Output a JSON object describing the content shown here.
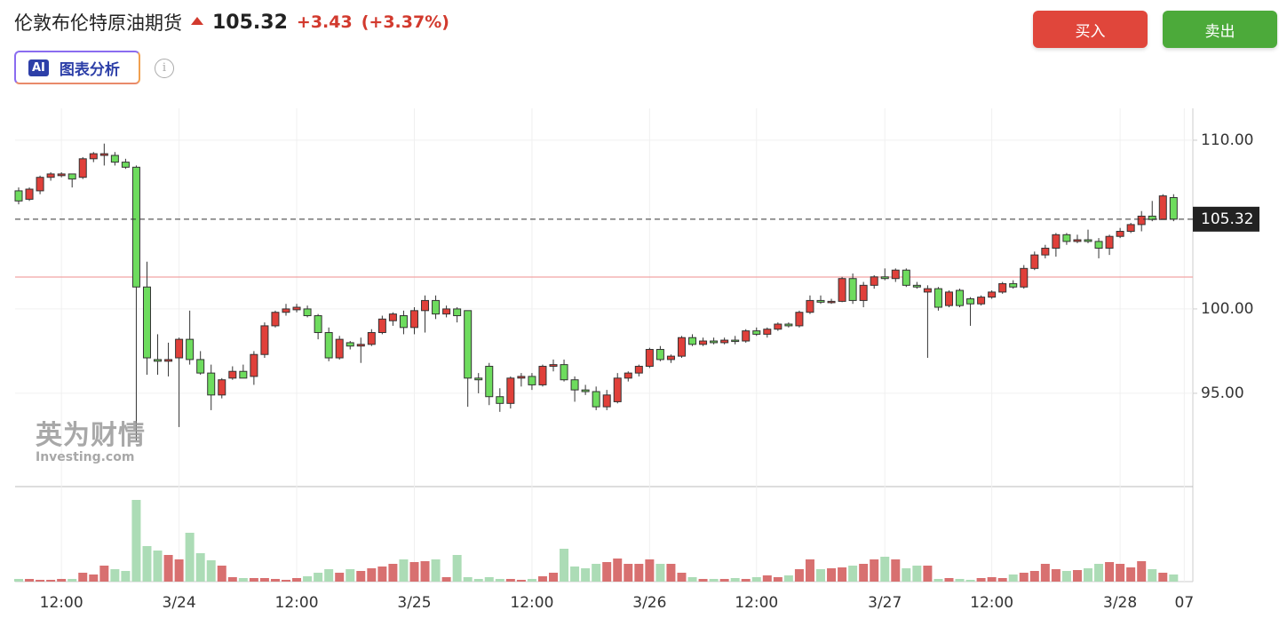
{
  "chart_data": {
    "type": "candlestick",
    "title": "伦敦布伦特原油期货",
    "price": 105.32,
    "change": "+3.43",
    "change_pct": "(+3.37%)",
    "buy": "买入",
    "sell": "卖出",
    "ai_badge": "AI",
    "analysis": "图表分析",
    "watermark": "英为财情",
    "watermark_sub": "Investing.com",
    "up_color": "#e0403a",
    "down_color": "#6edc5e",
    "volume_up_color": "#d87070",
    "volume_down_color": "#acdcb6",
    "prev_close": 101.89,
    "ylim": [
      89.47,
      111.89
    ],
    "yticks": [
      {
        "value": 95,
        "label": "95.00"
      },
      {
        "value": 100,
        "label": "100.00"
      },
      {
        "value": 110,
        "label": "110.00"
      }
    ],
    "grid": true,
    "categories": [
      null,
      null,
      null,
      null,
      "12:00",
      null,
      null,
      null,
      null,
      null,
      null,
      null,
      null,
      null,
      null,
      "3/24",
      null,
      null,
      null,
      null,
      null,
      null,
      null,
      null,
      null,
      null,
      "12:00",
      null,
      null,
      null,
      null,
      null,
      null,
      null,
      null,
      null,
      null,
      "3/25",
      null,
      null,
      null,
      null,
      null,
      null,
      null,
      null,
      null,
      null,
      "12:00",
      null,
      null,
      null,
      null,
      null,
      null,
      null,
      null,
      null,
      null,
      "3/26",
      null,
      null,
      null,
      null,
      null,
      null,
      null,
      null,
      null,
      "12:00",
      null,
      null,
      null,
      null,
      null,
      null,
      null,
      null,
      null,
      null,
      null,
      "3/27",
      null,
      null,
      null,
      null,
      null,
      null,
      null,
      null,
      null,
      "12:00",
      null,
      null,
      null,
      null,
      null,
      null,
      null,
      null,
      null,
      null,
      null,
      "3/28",
      null,
      null,
      null,
      null,
      null,
      "07"
    ],
    "open": [
      107.0,
      106.5,
      107.0,
      107.8,
      107.9,
      108.0,
      107.8,
      108.9,
      109.1,
      109.1,
      108.7,
      108.4,
      101.3,
      97.0,
      96.9,
      97.1,
      98.2,
      97.0,
      96.2,
      94.9,
      95.9,
      96.3,
      96.0,
      97.3,
      99.0,
      99.8,
      99.95,
      100.0,
      99.6,
      98.6,
      97.1,
      98.0,
      97.8,
      97.9,
      98.6,
      99.3,
      99.6,
      98.9,
      99.9,
      100.5,
      99.7,
      100.0,
      99.9,
      95.9,
      96.6,
      94.8,
      94.4,
      95.9,
      96.0,
      95.5,
      96.6,
      96.7,
      95.8,
      95.2,
      95.1,
      94.2,
      94.5,
      95.9,
      96.2,
      96.6,
      97.6,
      97.0,
      97.2,
      98.3,
      97.9,
      98.1,
      98.0,
      98.15,
      98.1,
      98.7,
      98.5,
      98.8,
      99.1,
      99.0,
      99.8,
      100.5,
      100.4,
      100.45,
      101.8,
      100.5,
      101.4,
      101.9,
      101.8,
      102.3,
      101.4,
      101.0,
      101.2,
      100.2,
      101.1,
      100.6,
      100.3,
      100.7,
      101.0,
      101.5,
      101.3,
      102.4,
      103.2,
      103.6,
      104.4,
      104.0,
      104.1,
      104.0,
      103.6,
      104.3,
      104.6,
      105.0,
      105.5,
      105.3,
      106.6,
      null
    ],
    "high": [
      107.2,
      107.2,
      107.9,
      108.1,
      108.1,
      108.0,
      109.0,
      109.3,
      109.8,
      109.3,
      108.9,
      108.5,
      102.8,
      98.5,
      98.0,
      98.3,
      99.9,
      97.5,
      96.7,
      95.9,
      96.6,
      96.7,
      97.5,
      99.2,
      99.9,
      100.3,
      100.3,
      100.2,
      99.7,
      98.9,
      98.4,
      98.1,
      98.3,
      98.8,
      99.6,
      99.8,
      99.9,
      100.1,
      100.8,
      100.8,
      100.2,
      100.1,
      99.9,
      96.2,
      96.8,
      95.3,
      96.0,
      96.2,
      96.2,
      96.7,
      97.0,
      97.0,
      96.0,
      95.5,
      95.4,
      95.2,
      96.2,
      96.3,
      96.7,
      97.7,
      97.8,
      97.3,
      98.4,
      98.5,
      98.3,
      98.3,
      98.3,
      98.4,
      98.8,
      98.9,
      98.9,
      99.2,
      99.2,
      99.9,
      100.8,
      100.8,
      100.6,
      101.9,
      102.1,
      101.6,
      102.0,
      102.4,
      102.4,
      102.4,
      101.6,
      101.4,
      101.3,
      101.1,
      101.2,
      100.7,
      100.8,
      101.1,
      101.6,
      101.7,
      102.6,
      103.4,
      103.8,
      104.5,
      104.5,
      104.4,
      104.7,
      104.2,
      104.4,
      104.8,
      105.1,
      105.8,
      106.4,
      106.8,
      106.8,
      null
    ],
    "low": [
      106.2,
      106.4,
      106.8,
      107.6,
      107.8,
      107.2,
      107.7,
      108.7,
      108.5,
      108.5,
      108.3,
      92.2,
      96.1,
      96.1,
      96.0,
      93.0,
      96.7,
      96.1,
      94.0,
      94.7,
      95.8,
      95.9,
      95.5,
      97.1,
      98.9,
      99.6,
      99.8,
      99.5,
      98.2,
      96.9,
      97.0,
      97.6,
      96.8,
      97.8,
      98.5,
      99.0,
      98.5,
      98.5,
      98.6,
      99.4,
      99.5,
      99.2,
      94.2,
      95.0,
      94.3,
      93.9,
      94.1,
      95.4,
      95.2,
      95.4,
      96.3,
      95.7,
      94.5,
      94.9,
      94.0,
      94.0,
      94.4,
      95.7,
      96.0,
      96.5,
      96.9,
      96.8,
      97.1,
      97.8,
      97.8,
      97.9,
      97.9,
      97.9,
      98.0,
      98.4,
      98.3,
      98.7,
      98.9,
      98.9,
      99.7,
      100.3,
      100.3,
      100.4,
      100.3,
      100.1,
      101.2,
      101.7,
      101.6,
      101.3,
      101.2,
      97.1,
      99.9,
      100.1,
      100.1,
      99.0,
      100.2,
      100.6,
      100.9,
      101.2,
      101.2,
      102.3,
      103.0,
      103.1,
      103.8,
      103.9,
      103.9,
      103.0,
      103.2,
      104.2,
      104.5,
      104.6,
      105.2,
      105.3,
      105.2,
      null
    ],
    "close": [
      106.4,
      107.1,
      107.8,
      108.0,
      108.0,
      107.7,
      108.9,
      109.2,
      109.2,
      108.7,
      108.4,
      101.3,
      97.1,
      96.9,
      97.0,
      98.2,
      97.0,
      96.2,
      94.9,
      95.8,
      96.3,
      95.9,
      97.3,
      99.0,
      99.8,
      100.0,
      100.1,
      99.6,
      98.6,
      97.1,
      98.2,
      97.8,
      97.9,
      98.6,
      99.4,
      99.7,
      98.9,
      99.9,
      100.5,
      99.7,
      100.0,
      99.6,
      95.9,
      95.8,
      94.8,
      94.4,
      95.9,
      96.0,
      95.5,
      96.6,
      96.7,
      95.8,
      95.2,
      95.1,
      94.2,
      94.9,
      95.9,
      96.2,
      96.6,
      97.6,
      97.0,
      97.2,
      98.3,
      97.9,
      98.1,
      98.0,
      98.15,
      98.1,
      98.7,
      98.5,
      98.8,
      99.1,
      99.0,
      99.8,
      100.5,
      100.4,
      100.45,
      101.8,
      100.5,
      101.4,
      101.9,
      101.8,
      102.3,
      101.4,
      101.3,
      101.2,
      100.1,
      101.0,
      100.2,
      100.3,
      100.7,
      101.0,
      101.5,
      101.3,
      102.4,
      103.2,
      103.6,
      104.4,
      104.0,
      104.1,
      104.0,
      103.6,
      104.3,
      104.6,
      105.0,
      105.5,
      105.3,
      106.7,
      105.32,
      null
    ],
    "volume": [
      3,
      3,
      2,
      2,
      3,
      3,
      10,
      8,
      18,
      14,
      12,
      92,
      40,
      35,
      30,
      25,
      55,
      32,
      24,
      18,
      5,
      4,
      4,
      4,
      3,
      2,
      4,
      6,
      10,
      14,
      10,
      14,
      12,
      15,
      17,
      20,
      25,
      22,
      23,
      25,
      5,
      30,
      5,
      3,
      5,
      3,
      3,
      2,
      3,
      6,
      10,
      37,
      17,
      15,
      20,
      22,
      26,
      20,
      20,
      25,
      20,
      20,
      10,
      5,
      3,
      3,
      3,
      4,
      3,
      5,
      7,
      5,
      7,
      14,
      25,
      14,
      15,
      16,
      18,
      20,
      25,
      28,
      25,
      15,
      18,
      18,
      3,
      4,
      3,
      2,
      4,
      5,
      4,
      8,
      10,
      12,
      20,
      14,
      12,
      13,
      15,
      20,
      22,
      20,
      16,
      23,
      14,
      10,
      8,
      null
    ]
  }
}
